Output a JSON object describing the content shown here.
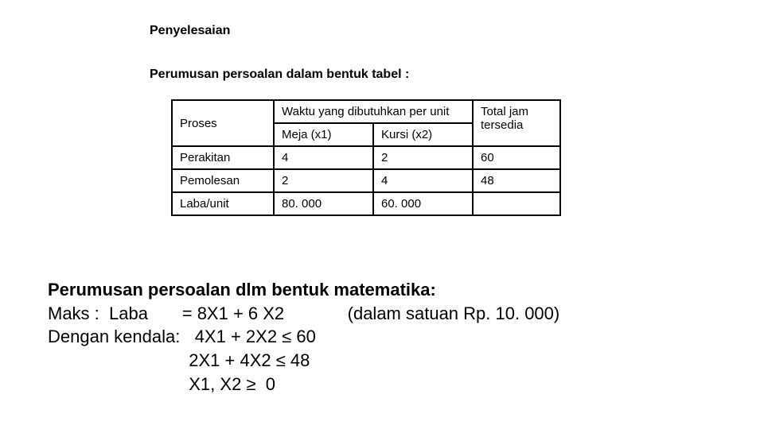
{
  "title": "Penyelesaian",
  "subtitle": "Perumusan persoalan dalam bentuk tabel :",
  "table": {
    "proses_header": "Proses",
    "waktu_header": "Waktu yang dibutuhkan per unit",
    "total_header_line1": "Total jam",
    "total_header_line2": "tersedia",
    "meja_header": "Meja (x1)",
    "kursi_header": "Kursi (x2)",
    "rows": [
      {
        "label": "Perakitan",
        "meja": "4",
        "kursi": "2",
        "total": "60"
      },
      {
        "label": "Pemolesan",
        "meja": "2",
        "kursi": "4",
        "total": "48"
      },
      {
        "label": "Laba/unit",
        "meja": "80. 000",
        "kursi": "60. 000",
        "total": ""
      }
    ]
  },
  "math": {
    "heading": "Perumusan persoalan dlm bentuk matematika:",
    "line_maks_left": "Maks :  Laba       = 8X1 + 6 X2",
    "line_maks_right": "             (dalam satuan Rp. 10. 000)",
    "line_kendala1": "Dengan kendala:   4X1 + 2X2 ≤ 60",
    "line_kendala2": "                             2X1 + 4X2 ≤ 48",
    "line_kendala3": "                             X1, X2 ≥  0"
  },
  "colors": {
    "background": "#ffffff",
    "text": "#000000",
    "border": "#000000"
  },
  "fonts": {
    "body_family": "Arial",
    "title_size_pt": 12,
    "table_size_pt": 11,
    "math_size_pt": 16
  }
}
